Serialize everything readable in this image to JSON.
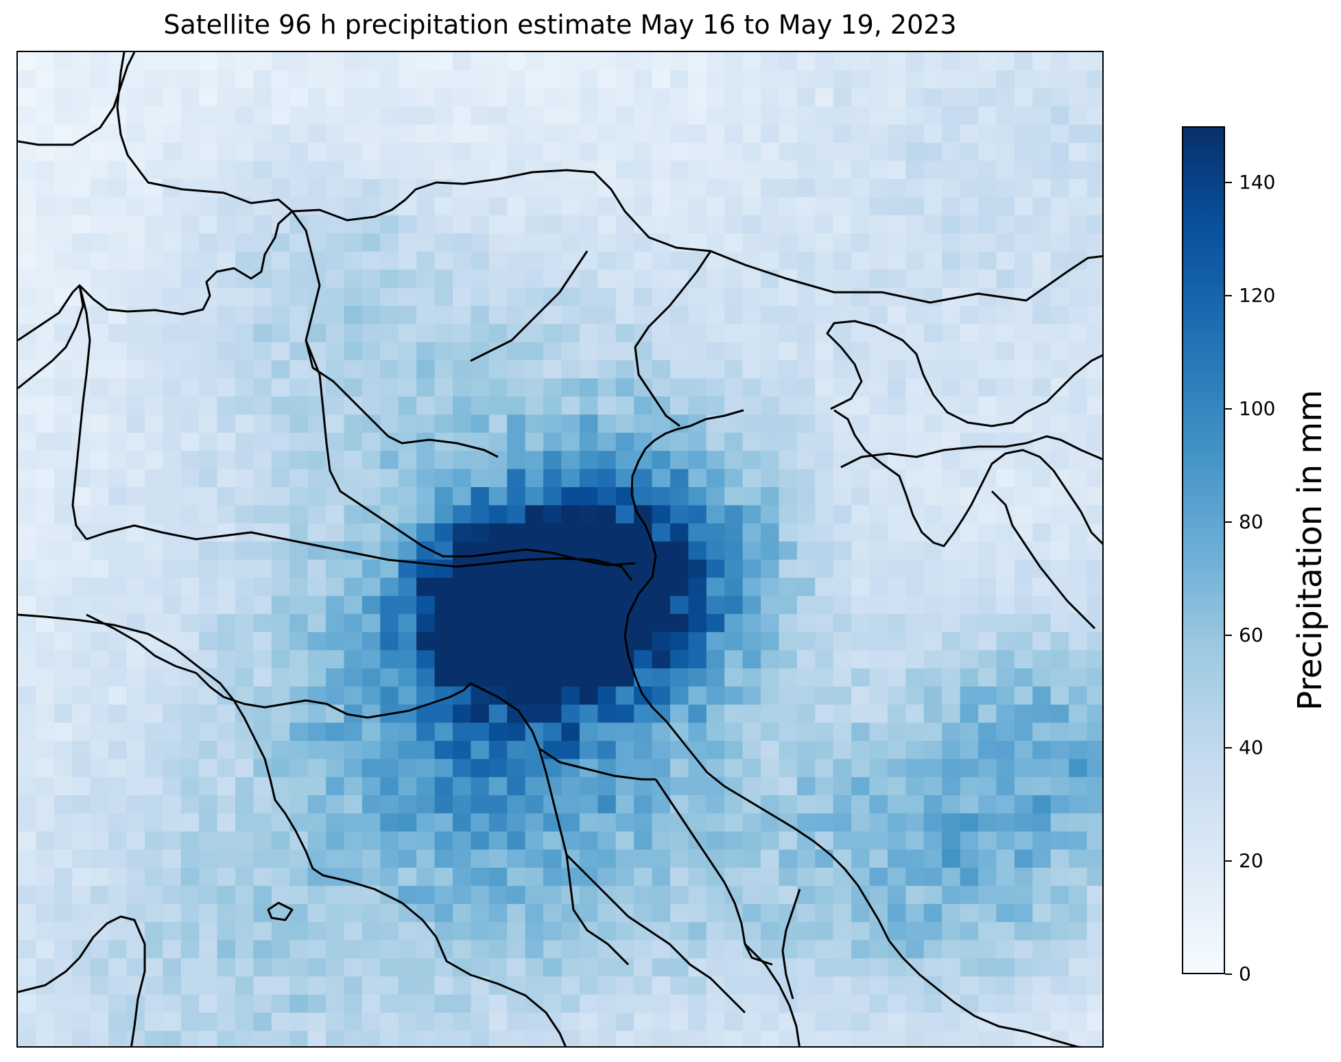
{
  "title": "Satellite 96 h precipitation estimate May 16 to May 19, 2023",
  "colorbar": {
    "label": "Precipitation in mm",
    "ticks": [
      "0",
      "20",
      "40",
      "60",
      "80",
      "100",
      "120",
      "140"
    ],
    "range": [
      0,
      150
    ],
    "colormap": [
      "#f7fbff",
      "#deebf7",
      "#c6dbef",
      "#9ecae1",
      "#6baed6",
      "#4292c6",
      "#2171b5",
      "#08519c",
      "#08306b"
    ]
  },
  "map": {
    "type": "gridded precipitation field with coastlines and regional boundaries",
    "max_precipitation_mm": 150,
    "line_color": "#000000"
  }
}
